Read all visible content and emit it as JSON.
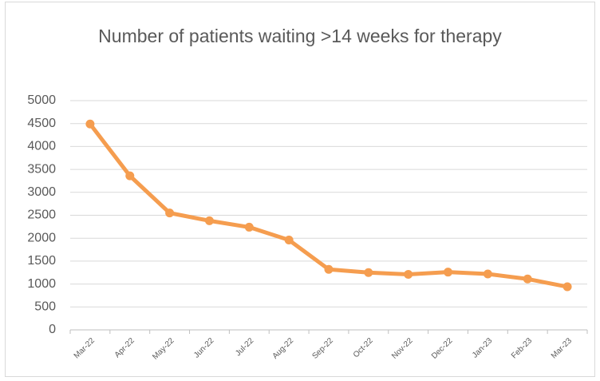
{
  "chart_data": {
    "type": "line",
    "title": "Number of patients waiting >14 weeks for therapy",
    "categories": [
      "Mar-22",
      "Apr-22",
      "May-22",
      "Jun-22",
      "Jul-22",
      "Aug-22",
      "Sep-22",
      "Oct-22",
      "Nov-22",
      "Dec-22",
      "Jan-23",
      "Feb-23",
      "Mar-23"
    ],
    "series": [
      {
        "name": "Patients waiting >14 weeks",
        "color": "#f59d4f",
        "values": [
          4490,
          3360,
          2550,
          2380,
          2240,
          1960,
          1320,
          1250,
          1210,
          1260,
          1220,
          1110,
          940
        ]
      }
    ],
    "ylim": [
      0,
      5000
    ],
    "yticks": [
      0,
      500,
      1000,
      1500,
      2000,
      2500,
      3000,
      3500,
      4000,
      4500,
      5000
    ],
    "grid": true,
    "legend": false
  }
}
